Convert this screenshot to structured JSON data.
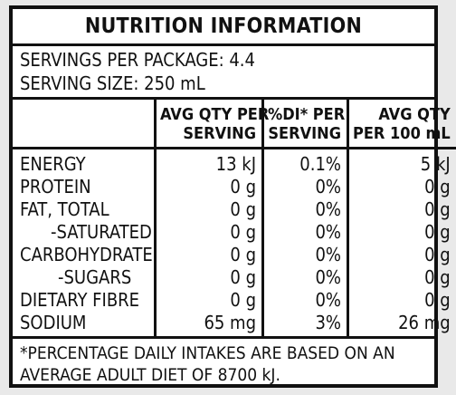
{
  "title": "NUTRITION INFORMATION",
  "servings_per_package": "SERVINGS PER PACKAGE: 4.4",
  "serving_size": "SERVING SIZE: 250 mL",
  "headers": {
    "serving_line1": "AVG QTY PER",
    "serving_line2": "SERVING",
    "di_line1": "%DI* PER",
    "di_line2": "SERVING",
    "per100_line1": "AVG QTY",
    "per100_line2": "PER 100 mL"
  },
  "rows": [
    {
      "name": "ENERGY",
      "serving": "13 kJ",
      "di": "0.1%",
      "per100": "5 kJ"
    },
    {
      "name": "PROTEIN",
      "serving": "0 g",
      "di": "0%",
      "per100": "0 g"
    },
    {
      "name": "FAT, TOTAL",
      "serving": "0 g",
      "di": "0%",
      "per100": "0 g"
    },
    {
      "name": "-SATURATED",
      "serving": "0 g",
      "di": "0%",
      "per100": "0 g"
    },
    {
      "name": "CARBOHYDRATE",
      "serving": "0 g",
      "di": "0%",
      "per100": "0 g"
    },
    {
      "name": "-SUGARS",
      "serving": "0 g",
      "di": "0%",
      "per100": "0 g"
    },
    {
      "name": "DIETARY FIBRE",
      "serving": "0 g",
      "di": "0%",
      "per100": "0 g"
    },
    {
      "name": "SODIUM",
      "serving": "65 mg",
      "di": "3%",
      "per100": "26 mg"
    }
  ],
  "footnote_line1": "*PERCENTAGE DAILY INTAKES ARE BASED ON AN",
  "footnote_line2": "AVERAGE ADULT DIET OF 8700 kJ."
}
